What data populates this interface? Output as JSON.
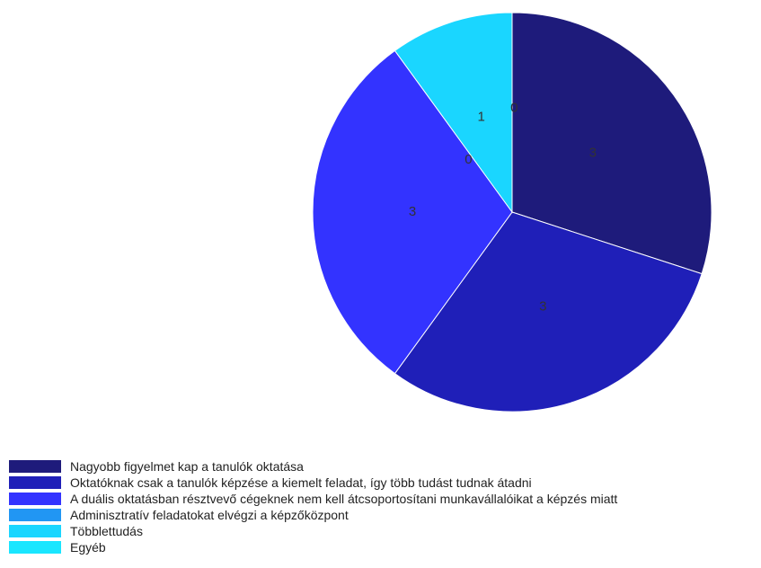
{
  "chart_data": {
    "type": "pie",
    "title": "",
    "legend_position": "bottom-left",
    "slices": [
      {
        "label": "Nagyobb figyelmet kap a tanulók oktatása",
        "value": 3,
        "color": "#1e1b7b"
      },
      {
        "label": "Oktatóknak csak a tanulók képzése a kiemelt feladat, így több tudást tudnak átadni",
        "value": 3,
        "color": "#1f1fb8"
      },
      {
        "label": "A duális oktatásban résztvevő cégeknek nem kell átcsoportosítani munkavállalóikat a képzés miatt",
        "value": 3,
        "color": "#3333ff"
      },
      {
        "label": "Adminisztratív feladatokat elvégzi a képzőközpont",
        "value": 0,
        "color": "#2196f3"
      },
      {
        "label": "Többlettudás",
        "value": 1,
        "color": "#1ad6ff"
      },
      {
        "label": "Egyéb",
        "value": 0,
        "color": "#1ae6ff"
      }
    ]
  }
}
